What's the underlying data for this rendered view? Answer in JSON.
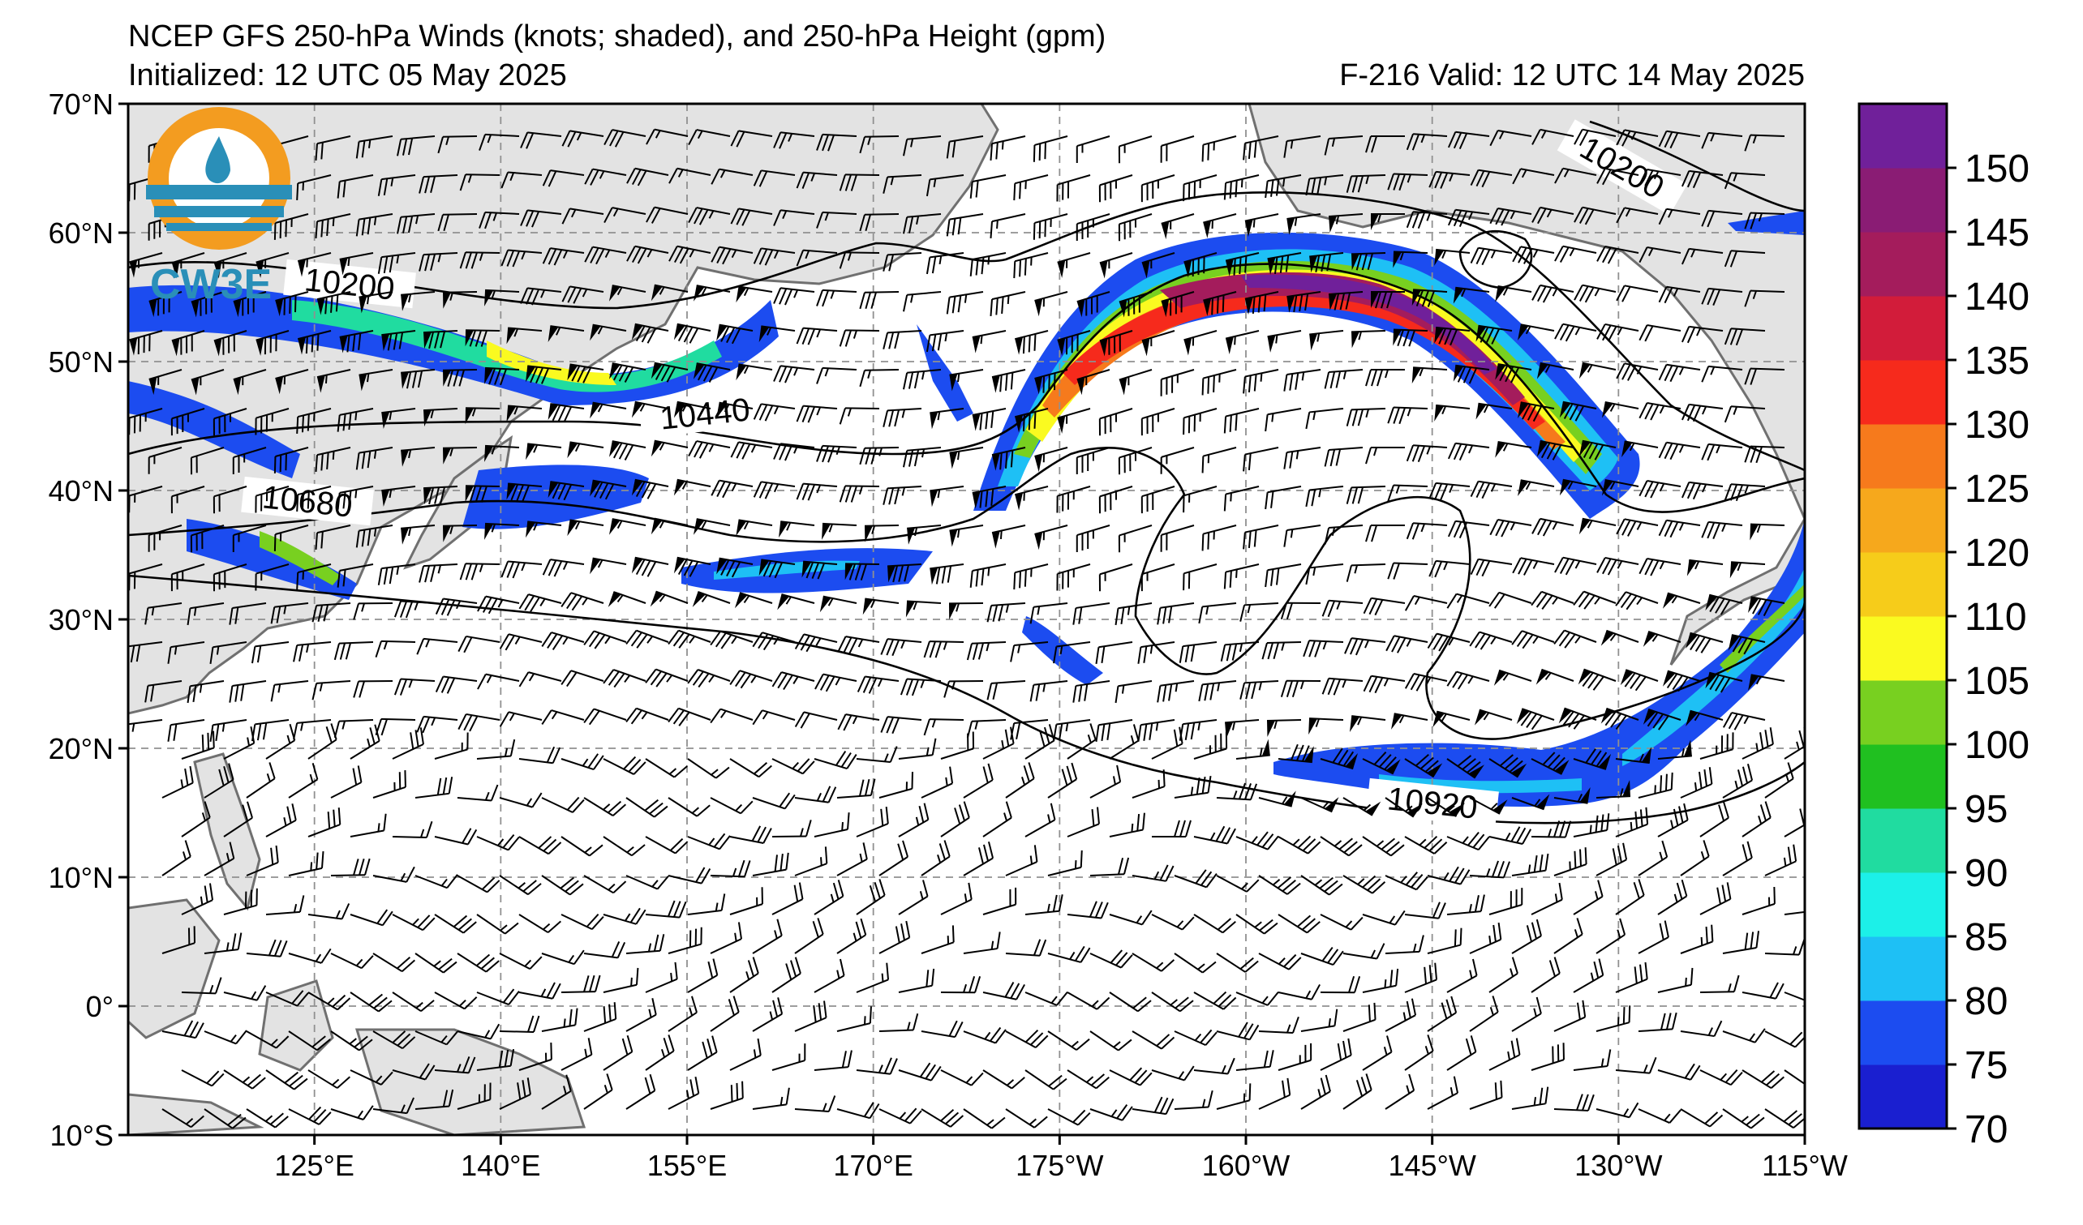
{
  "title": {
    "line1": "NCEP GFS 250-hPa Winds (knots; shaded), and 250-hPa Height (gpm)",
    "init": "Initialized: 12 UTC 05 May 2025",
    "valid": "F-216  Valid: 12 UTC 14 May 2025"
  },
  "logo": {
    "text": "CW3E",
    "ring_color": "#f39c20",
    "wave_color": "#2a8fb8"
  },
  "map": {
    "extent": {
      "lon_west": 110,
      "lon_east": 245,
      "lat_south": -10,
      "lat_north": 70
    },
    "lat_ticks": [
      {
        "lat": 70,
        "label": "70°N"
      },
      {
        "lat": 60,
        "label": "60°N"
      },
      {
        "lat": 50,
        "label": "50°N"
      },
      {
        "lat": 40,
        "label": "40°N"
      },
      {
        "lat": 30,
        "label": "30°N"
      },
      {
        "lat": 20,
        "label": "20°N"
      },
      {
        "lat": 10,
        "label": "10°N"
      },
      {
        "lat": 0,
        "label": "0°"
      },
      {
        "lat": -10,
        "label": "10°S"
      }
    ],
    "lon_ticks": [
      {
        "lon": 125,
        "label": "125°E"
      },
      {
        "lon": 140,
        "label": "140°E"
      },
      {
        "lon": 155,
        "label": "155°E"
      },
      {
        "lon": 170,
        "label": "170°E"
      },
      {
        "lon": 185,
        "label": "175°W"
      },
      {
        "lon": 200,
        "label": "160°W"
      },
      {
        "lon": 215,
        "label": "145°W"
      },
      {
        "lon": 230,
        "label": "130°W"
      },
      {
        "lon": 245,
        "label": "115°W"
      }
    ],
    "land_color": "#e3e3e3",
    "coast_color": "#707070",
    "grid": "dashed"
  },
  "colorbar": {
    "levels": [
      70,
      75,
      80,
      85,
      90,
      95,
      100,
      105,
      110,
      120,
      125,
      130,
      135,
      140,
      145,
      150
    ],
    "labels": [
      "70",
      "75",
      "80",
      "85",
      "90",
      "95",
      "100",
      "105",
      "110",
      "120",
      "125",
      "130",
      "135",
      "140",
      "145",
      "150"
    ],
    "colors": [
      "#1a1fd0",
      "#1c4cf0",
      "#1ec0f5",
      "#1cf0e8",
      "#20dca0",
      "#20c020",
      "#78d020",
      "#fafa20",
      "#f6cc1a",
      "#f6a81c",
      "#f67a1c",
      "#f62a1c",
      "#d21c3a",
      "#a41c5c",
      "#8a1c74",
      "#70209a"
    ]
  },
  "contours": [
    {
      "label": "10200"
    },
    {
      "label": "10200"
    },
    {
      "label": "10440"
    },
    {
      "label": "10680"
    },
    {
      "label": "10920"
    }
  ]
}
